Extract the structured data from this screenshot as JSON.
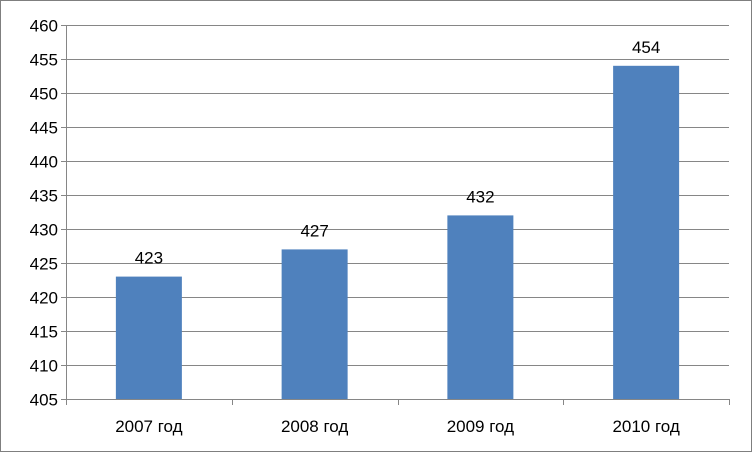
{
  "chart_data": {
    "type": "bar",
    "categories": [
      "2007 год",
      "2008 год",
      "2009 год",
      "2010 год"
    ],
    "values": [
      423,
      427,
      432,
      454
    ],
    "data_labels": [
      "423",
      "427",
      "432",
      "454"
    ],
    "title": "",
    "xlabel": "",
    "ylabel": "",
    "ylim": [
      405,
      460
    ],
    "y_ticks": [
      "405",
      "410",
      "415",
      "420",
      "425",
      "430",
      "435",
      "440",
      "445",
      "450",
      "455",
      "460"
    ],
    "grid": true,
    "legend": "none",
    "bar_color": "#4f81bd",
    "grid_color": "#868686"
  }
}
